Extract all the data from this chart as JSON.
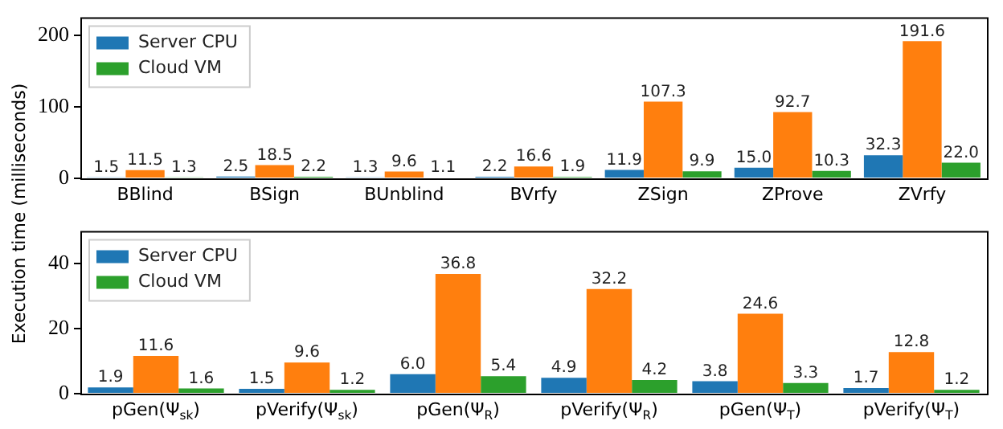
{
  "chart_data": [
    {
      "type": "bar",
      "ylabel": "Execution time (milliseconds)",
      "categories": [
        "BBlind",
        "BSign",
        "BUnblind",
        "BVrfy",
        "ZSign",
        "ZProve",
        "ZVrfy"
      ],
      "ylim": [
        0,
        225
      ],
      "yticks": [
        0,
        100,
        200
      ],
      "legend": "top left",
      "grid": false,
      "series": [
        {
          "name": "Server CPU",
          "color": "#1f77b4",
          "values": [
            1.5,
            2.5,
            1.3,
            2.2,
            11.9,
            15.0,
            32.3
          ],
          "value_labels": [
            "1.5",
            "2.5",
            "1.3",
            "2.2",
            "11.9",
            "15.0",
            "32.3"
          ]
        },
        {
          "color": "#ff7f0e",
          "values": [
            11.5,
            18.5,
            9.6,
            16.6,
            107.3,
            92.7,
            191.6
          ],
          "value_labels": [
            "11.5",
            "18.5",
            "9.6",
            "16.6",
            "107.3",
            "92.7",
            "191.6"
          ]
        },
        {
          "name": "Cloud VM",
          "color": "#2ca02c",
          "values": [
            1.3,
            2.2,
            1.1,
            1.9,
            9.9,
            10.3,
            22.0
          ],
          "value_labels": [
            "1.3",
            "2.2",
            "1.1",
            "1.9",
            "9.9",
            "10.3",
            "22.0"
          ]
        }
      ]
    },
    {
      "type": "bar",
      "categories": [
        "pGen(Ψ$_{sk}$)",
        "pVerify(Ψ$_{sk}$)",
        "pGen(Ψ$_{R}$)",
        "pVerify(Ψ$_{R}$)",
        "pGen(Ψ$_{T}$)",
        "pVerify(Ψ$_{T}$)"
      ],
      "ylim": [
        0,
        50
      ],
      "yticks": [
        0,
        20,
        40
      ],
      "legend": "top left",
      "grid": false,
      "series": [
        {
          "name": "Server CPU",
          "color": "#1f77b4",
          "values": [
            1.9,
            1.5,
            6.0,
            4.9,
            3.8,
            1.7
          ],
          "value_labels": [
            "1.9",
            "1.5",
            "6.0",
            "4.9",
            "3.8",
            "1.7"
          ]
        },
        {
          "color": "#ff7f0e",
          "values": [
            11.6,
            9.6,
            36.8,
            32.2,
            24.6,
            12.8
          ],
          "value_labels": [
            "11.6",
            "9.6",
            "36.8",
            "32.2",
            "24.6",
            "12.8"
          ]
        },
        {
          "name": "Cloud VM",
          "color": "#2ca02c",
          "values": [
            1.6,
            1.2,
            5.4,
            4.2,
            3.3,
            1.2
          ],
          "value_labels": [
            "1.6",
            "1.2",
            "5.4",
            "4.2",
            "3.3",
            "1.2"
          ]
        }
      ]
    }
  ]
}
